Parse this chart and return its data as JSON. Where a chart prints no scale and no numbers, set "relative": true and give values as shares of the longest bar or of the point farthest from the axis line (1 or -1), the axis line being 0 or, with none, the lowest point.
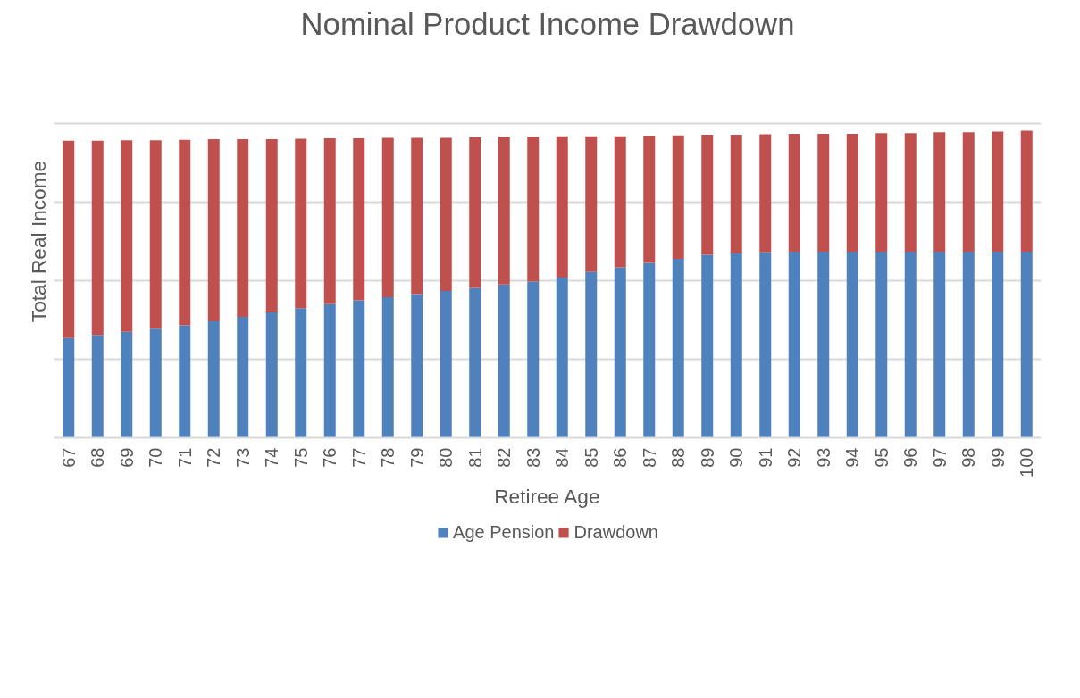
{
  "chart_data": {
    "type": "bar",
    "title": "Nominal Product Income Drawdown",
    "xlabel": "Retiree Age",
    "ylabel": "Total Real Income",
    "relative": true,
    "stacked": true,
    "grid": "y",
    "legend": "bottom",
    "categories": [
      "67",
      "68",
      "69",
      "70",
      "71",
      "72",
      "73",
      "74",
      "75",
      "76",
      "77",
      "78",
      "79",
      "80",
      "81",
      "82",
      "83",
      "84",
      "85",
      "86",
      "87",
      "88",
      "89",
      "90",
      "91",
      "92",
      "93",
      "94",
      "95",
      "96",
      "97",
      "98",
      "99",
      "100"
    ],
    "series": [
      {
        "name": "Age Pension",
        "color": "#4f81bd",
        "values": [
          0.325,
          0.335,
          0.345,
          0.355,
          0.366,
          0.379,
          0.394,
          0.409,
          0.422,
          0.435,
          0.448,
          0.458,
          0.468,
          0.478,
          0.488,
          0.499,
          0.509,
          0.522,
          0.54,
          0.555,
          0.57,
          0.583,
          0.596,
          0.601,
          0.604,
          0.606,
          0.606,
          0.606,
          0.606,
          0.606,
          0.606,
          0.606,
          0.606,
          0.606
        ]
      },
      {
        "name": "Drawdown",
        "color": "#c0504d",
        "values": [
          0.642,
          0.632,
          0.624,
          0.614,
          0.604,
          0.593,
          0.578,
          0.563,
          0.552,
          0.54,
          0.527,
          0.519,
          0.509,
          0.499,
          0.491,
          0.481,
          0.471,
          0.46,
          0.442,
          0.427,
          0.414,
          0.402,
          0.391,
          0.386,
          0.384,
          0.384,
          0.384,
          0.384,
          0.386,
          0.386,
          0.389,
          0.389,
          0.391,
          0.394
        ]
      }
    ]
  }
}
